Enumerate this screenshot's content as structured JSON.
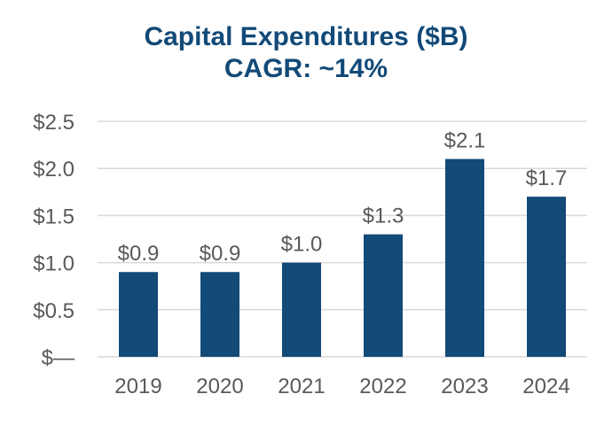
{
  "chart_data": {
    "type": "bar",
    "title": "Capital Expenditures ($B)",
    "subtitle": "CAGR: ~14%",
    "categories": [
      "2019",
      "2020",
      "2021",
      "2022",
      "2023",
      "2024"
    ],
    "values": [
      0.9,
      0.9,
      1.0,
      1.3,
      2.1,
      1.7
    ],
    "data_labels": [
      "$0.9",
      "$0.9",
      "$1.0",
      "$1.3",
      "$2.1",
      "$1.7"
    ],
    "xlabel": "",
    "ylabel": "",
    "ylim": [
      0,
      2.5
    ],
    "y_ticks": [
      0,
      0.5,
      1.0,
      1.5,
      2.0,
      2.5
    ],
    "y_tick_labels": [
      "$—",
      "$0.5",
      "$1.0",
      "$1.5",
      "$2.0",
      "$2.5"
    ],
    "grid": true,
    "legend": "none",
    "colors": {
      "bar": "#124a78",
      "title": "#124a78",
      "text": "#595959",
      "grid": "#d9d9d9"
    }
  }
}
